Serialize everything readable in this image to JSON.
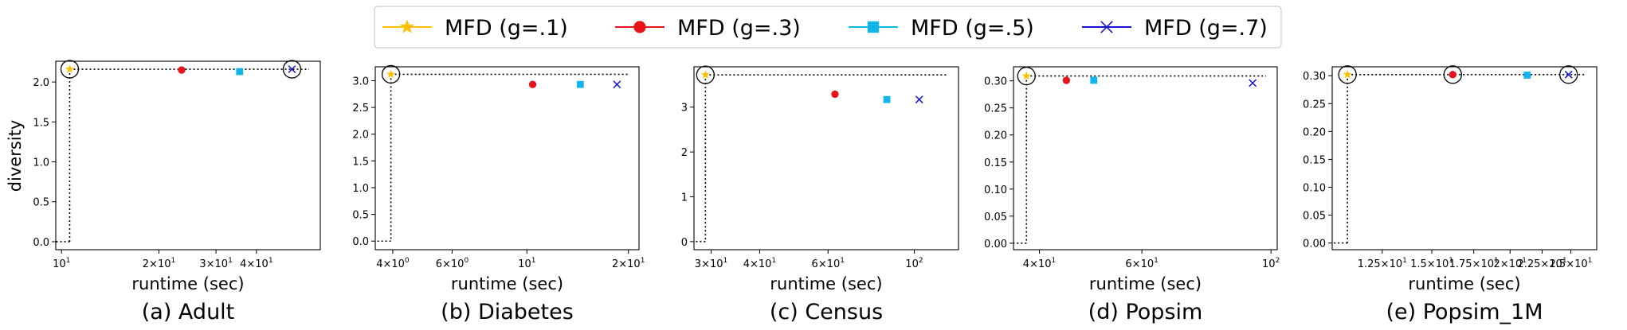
{
  "legend": {
    "entries": [
      {
        "label": "MFD (g=.1)",
        "color": "#FFC000",
        "marker": "star"
      },
      {
        "label": "MFD (g=.3)",
        "color": "#E8141B",
        "marker": "circle"
      },
      {
        "label": "MFD (g=.5)",
        "color": "#12B5EA",
        "marker": "square"
      },
      {
        "label": "MFD (g=.7)",
        "color": "#1414D2",
        "marker": "x"
      }
    ]
  },
  "ylabel": "diversity",
  "chart_data": [
    {
      "type": "scatter",
      "caption": "(a) Adult",
      "xlabel": "runtime (sec)",
      "xscale": "log",
      "xlim": [
        9.6,
        63
      ],
      "ylim": [
        -0.1,
        2.26
      ],
      "yticks": [
        0.0,
        0.5,
        1.0,
        1.5,
        2.0
      ],
      "ytick_labels": [
        "0.0",
        "0.5",
        "1.0",
        "1.5",
        "2.0"
      ],
      "xticks": [
        10,
        20,
        30,
        40
      ],
      "xtick_labels": [
        "10^1",
        "2×10^1",
        "3×10^1",
        "4×10^1"
      ],
      "frontier_y": 2.16,
      "frontier_x_start": 10.6,
      "series": [
        {
          "name": "MFD (g=.1)",
          "x": 10.6,
          "y": 2.16
        },
        {
          "name": "MFD (g=.3)",
          "x": 23.5,
          "y": 2.15
        },
        {
          "name": "MFD (g=.5)",
          "x": 35.5,
          "y": 2.13
        },
        {
          "name": "MFD (g=.7)",
          "x": 51.5,
          "y": 2.16
        }
      ],
      "circled": [
        "MFD (g=.1)",
        "MFD (g=.7)"
      ]
    },
    {
      "type": "scatter",
      "caption": "(b) Diabetes",
      "xlabel": "runtime (sec)",
      "xscale": "log",
      "xlim": [
        3.55,
        21.5
      ],
      "ylim": [
        -0.16,
        3.26
      ],
      "yticks": [
        0.0,
        0.5,
        1.0,
        1.5,
        2.0,
        2.5,
        3.0
      ],
      "ytick_labels": [
        "0.0",
        "0.5",
        "1.0",
        "1.5",
        "2.0",
        "2.5",
        "3.0"
      ],
      "xticks": [
        4,
        6,
        10,
        20
      ],
      "xtick_labels": [
        "4×10^0",
        "6×10^0",
        "10^1",
        "2×10^1"
      ],
      "frontier_y": 3.12,
      "frontier_x_start": 3.95,
      "series": [
        {
          "name": "MFD (g=.1)",
          "x": 3.95,
          "y": 3.12
        },
        {
          "name": "MFD (g=.3)",
          "x": 10.4,
          "y": 2.93
        },
        {
          "name": "MFD (g=.5)",
          "x": 14.4,
          "y": 2.93
        },
        {
          "name": "MFD (g=.7)",
          "x": 18.5,
          "y": 2.93
        }
      ],
      "circled": [
        "MFD (g=.1)"
      ]
    },
    {
      "type": "scatter",
      "caption": "(c) Census",
      "xlabel": "runtime (sec)",
      "xscale": "log",
      "xlim": [
        27.1,
        130
      ],
      "ylim": [
        -0.18,
        3.9
      ],
      "yticks": [
        0,
        1,
        2,
        3
      ],
      "ytick_labels": [
        "0",
        "1",
        "2",
        "3"
      ],
      "xticks": [
        30,
        40,
        60,
        100
      ],
      "xtick_labels": [
        "3×10^1",
        "4×10^1",
        "6×10^1",
        "10^2"
      ],
      "frontier_y": 3.72,
      "frontier_x_start": 29.0,
      "series": [
        {
          "name": "MFD (g=.1)",
          "x": 29.0,
          "y": 3.72
        },
        {
          "name": "MFD (g=.3)",
          "x": 62.5,
          "y": 3.29
        },
        {
          "name": "MFD (g=.5)",
          "x": 85.0,
          "y": 3.17
        },
        {
          "name": "MFD (g=.7)",
          "x": 103.0,
          "y": 3.17
        }
      ],
      "circled": [
        "MFD (g=.1)"
      ]
    },
    {
      "type": "scatter",
      "caption": "(d) Popsim",
      "xlabel": "runtime (sec)",
      "xscale": "log",
      "xlim": [
        36.1,
        102.5
      ],
      "ylim": [
        -0.012,
        0.326
      ],
      "yticks": [
        0.0,
        0.05,
        0.1,
        0.15,
        0.2,
        0.25,
        0.3
      ],
      "ytick_labels": [
        "0.00",
        "0.05",
        "0.10",
        "0.15",
        "0.20",
        "0.25",
        "0.30"
      ],
      "xticks": [
        40,
        60,
        100
      ],
      "xtick_labels": [
        "4×10^1",
        "6×10^1",
        "10^2"
      ],
      "frontier_y": 0.309,
      "frontier_x_start": 38.0,
      "series": [
        {
          "name": "MFD (g=.1)",
          "x": 38.0,
          "y": 0.309
        },
        {
          "name": "MFD (g=.3)",
          "x": 44.5,
          "y": 0.301
        },
        {
          "name": "MFD (g=.5)",
          "x": 49.6,
          "y": 0.301
        },
        {
          "name": "MFD (g=.7)",
          "x": 93.0,
          "y": 0.296
        }
      ],
      "circled": [
        "MFD (g=.1)"
      ]
    },
    {
      "type": "scatter",
      "caption": "(e) Popsim_1M",
      "xlabel": "runtime (sec)",
      "xscale": "log",
      "xlim": [
        10.4,
        27.5
      ],
      "ylim": [
        -0.012,
        0.316
      ],
      "yticks": [
        0.0,
        0.05,
        0.1,
        0.15,
        0.2,
        0.25,
        0.3
      ],
      "ytick_labels": [
        "0.00",
        "0.05",
        "0.10",
        "0.15",
        "0.20",
        "0.25",
        "0.30"
      ],
      "xticks": [
        12.5,
        15,
        17.5,
        20,
        22.5,
        25
      ],
      "xtick_labels": [
        "1.25×10^1",
        "1.5×10^1",
        "1.75×10^1",
        "2×10^1",
        "2.25×10^1",
        "2.5×10^1"
      ],
      "frontier_y": 0.302,
      "frontier_x_start": 11.0,
      "series": [
        {
          "name": "MFD (g=.1)",
          "x": 11.0,
          "y": 0.302
        },
        {
          "name": "MFD (g=.3)",
          "x": 16.2,
          "y": 0.302
        },
        {
          "name": "MFD (g=.5)",
          "x": 21.3,
          "y": 0.301
        },
        {
          "name": "MFD (g=.7)",
          "x": 24.8,
          "y": 0.302
        }
      ],
      "circled": [
        "MFD (g=.1)",
        "MFD (g=.3)",
        "MFD (g=.7)"
      ]
    }
  ]
}
